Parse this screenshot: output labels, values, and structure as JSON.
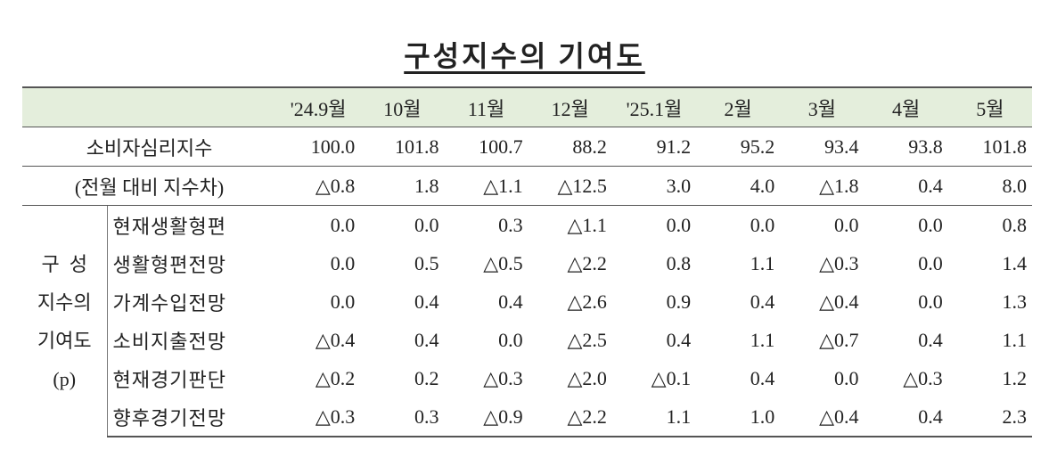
{
  "title": "구성지수의 기여도",
  "table": {
    "header": [
      "'24.9월",
      "10월",
      "11월",
      "12월",
      "'25.1월",
      "2월",
      "3월",
      "4월",
      "5월"
    ],
    "rows": [
      {
        "label": "소비자심리지수",
        "values": [
          "100.0",
          "101.8",
          "100.7",
          "88.2",
          "91.2",
          "95.2",
          "93.4",
          "93.8",
          "101.8"
        ]
      },
      {
        "label": "(전월 대비 지수차)",
        "values": [
          "△0.8",
          "1.8",
          "△1.1",
          "△12.5",
          "3.0",
          "4.0",
          "△1.8",
          "0.4",
          "8.0"
        ]
      }
    ],
    "group": {
      "label": [
        "구  성",
        "지수의",
        "기여도",
        "(p)"
      ],
      "rows": [
        {
          "label": "현재생활형편",
          "values": [
            "0.0",
            "0.0",
            "0.3",
            "△1.1",
            "0.0",
            "0.0",
            "0.0",
            "0.0",
            "0.8"
          ]
        },
        {
          "label": "생활형편전망",
          "values": [
            "0.0",
            "0.5",
            "△0.5",
            "△2.2",
            "0.8",
            "1.1",
            "△0.3",
            "0.0",
            "1.4"
          ]
        },
        {
          "label": "가계수입전망",
          "values": [
            "0.0",
            "0.4",
            "0.4",
            "△2.6",
            "0.9",
            "0.4",
            "△0.4",
            "0.0",
            "1.3"
          ]
        },
        {
          "label": "소비지출전망",
          "values": [
            "△0.4",
            "0.4",
            "0.0",
            "△2.5",
            "0.4",
            "1.1",
            "△0.7",
            "0.4",
            "1.1"
          ]
        },
        {
          "label": "현재경기판단",
          "values": [
            "△0.2",
            "0.2",
            "△0.3",
            "△2.0",
            "△0.1",
            "0.4",
            "0.0",
            "△0.3",
            "1.2"
          ]
        },
        {
          "label": "향후경기전망",
          "values": [
            "△0.3",
            "0.3",
            "△0.9",
            "△2.2",
            "1.1",
            "1.0",
            "△0.4",
            "0.4",
            "2.3"
          ]
        }
      ]
    }
  }
}
